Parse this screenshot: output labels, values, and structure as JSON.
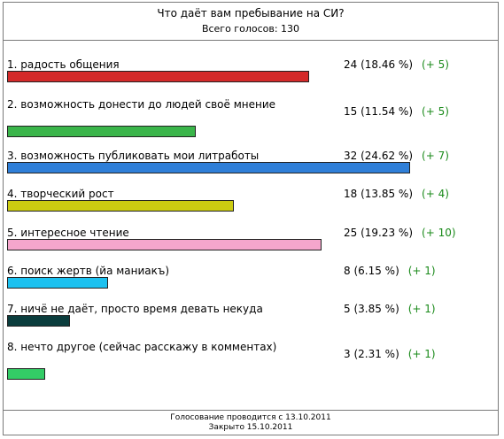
{
  "header": {
    "title": "Что даёт вам пребывание на СИ?",
    "total": "Всего голосов: 130"
  },
  "chart_data": {
    "type": "bar",
    "title": "Что даёт вам пребывание на СИ?",
    "total_votes": 130,
    "categories": [
      "1. радость общения",
      "2. возможность донести до людей своё мнение",
      "3. возможность публиковать мои литработы",
      "4. творческий рост",
      "5. интересное чтение",
      "6. поиск жертв (йа маниакъ)",
      "7. ничё не даёт, просто время девать некуда",
      "8. нечто другое (сейчас расскажу в комментах)"
    ],
    "values": [
      24,
      15,
      32,
      18,
      25,
      8,
      5,
      3
    ],
    "percent_labels": [
      "24 (18.46 %)",
      "15 (11.54 %)",
      "32 (24.62 %)",
      "18 (13.85 %)",
      "25 (19.23 %)",
      "8 (6.15 %)",
      "5 (3.85 %)",
      "3 (2.31 %)"
    ],
    "delta_labels": [
      "(+ 5)",
      "(+ 5)",
      "(+ 7)",
      "(+ 4)",
      "(+ 10)",
      "(+ 1)",
      "(+ 1)",
      "(+ 1)"
    ],
    "colors": [
      "#d42a2a",
      "#3ab54a",
      "#2f7fd8",
      "#cccc11",
      "#f5a6cc",
      "#1cc1f0",
      "#0b3d3d",
      "#33cc66"
    ],
    "xlim": [
      0,
      32
    ]
  },
  "footer": {
    "line1": "Голосование проводится с 13.10.2011",
    "line2": "Закрыто 15.10.2011"
  }
}
